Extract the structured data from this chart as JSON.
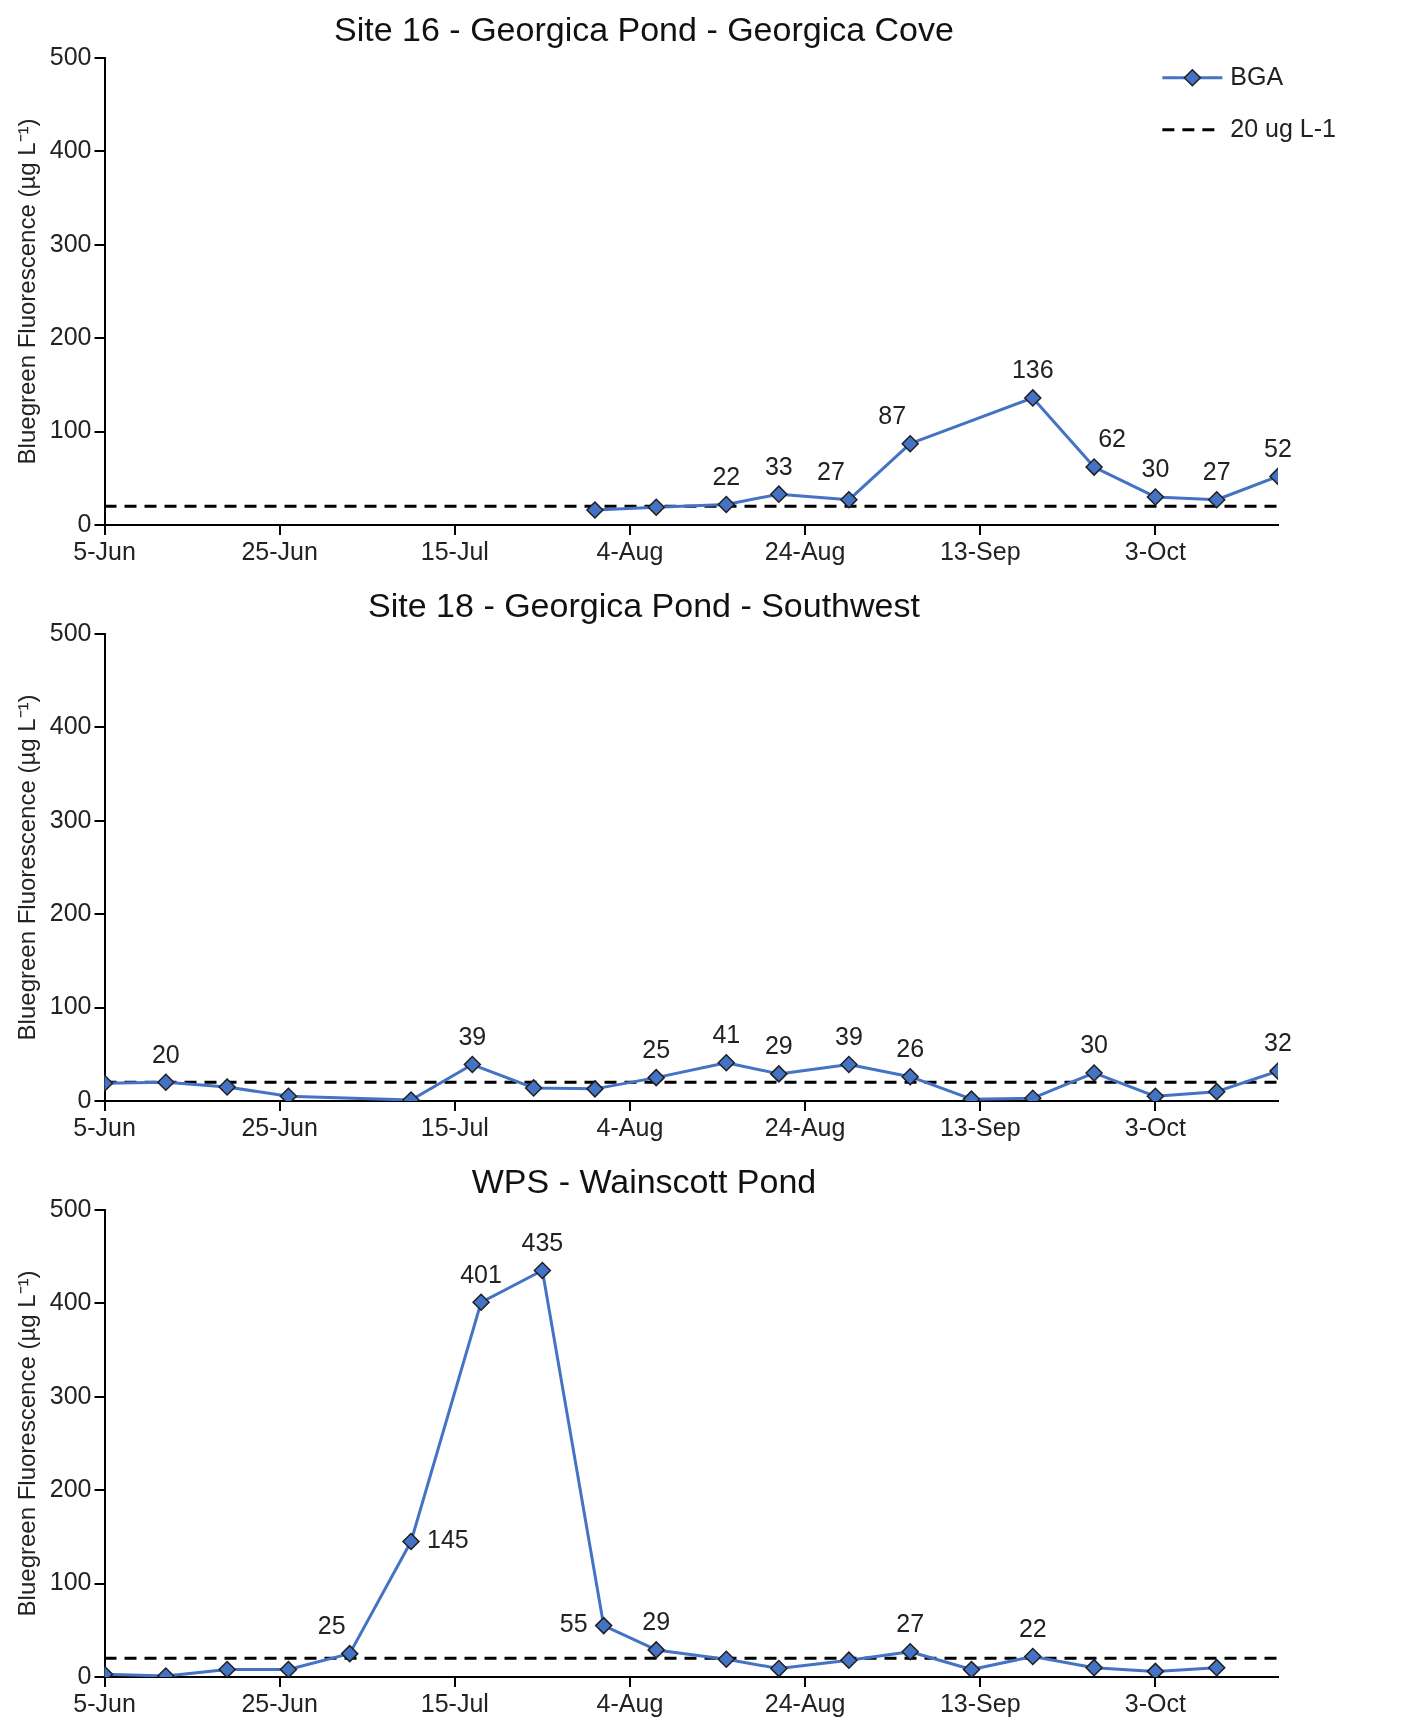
{
  "chart_data": [
    {
      "type": "line",
      "title": "Site 16 - Georgica Pond - Georgica Cove",
      "ylabel": "Bluegreen Fluorescence (µg L⁻¹)",
      "xlim": [
        "--06-05",
        "--10-17"
      ],
      "xticks": [
        {
          "value": "--06-05",
          "label": "5-Jun"
        },
        {
          "value": "--06-25",
          "label": "25-Jun"
        },
        {
          "value": "--07-15",
          "label": "15-Jul"
        },
        {
          "value": "--08-04",
          "label": "4-Aug"
        },
        {
          "value": "--08-24",
          "label": "24-Aug"
        },
        {
          "value": "--09-13",
          "label": "13-Sep"
        },
        {
          "value": "--10-03",
          "label": "3-Oct"
        }
      ],
      "ylim": [
        0,
        500
      ],
      "yticks": [
        0,
        100,
        200,
        300,
        400,
        500
      ],
      "marker": "diamond",
      "line_style": "solid",
      "legend": "top right",
      "grid": false,
      "series": [
        {
          "name": "BGA",
          "color": "#4472c4",
          "x": [
            "--07-31",
            "--08-07",
            "--08-15",
            "--08-21",
            "--08-29",
            "--09-05",
            "--09-19",
            "--09-26",
            "--10-03",
            "--10-10",
            "--10-17"
          ],
          "values": [
            16,
            19,
            22,
            33,
            27,
            87,
            136,
            62,
            30,
            27,
            52
          ],
          "value_labels": [
            null,
            null,
            "22",
            "33",
            "27",
            "87",
            "136",
            "62",
            "30",
            "27",
            "52"
          ]
        }
      ],
      "ref_lines": [
        {
          "axis": "y",
          "value": 20,
          "label": "20 ug L-1",
          "color": "#000000",
          "line_style": "dashed"
        }
      ]
    },
    {
      "type": "line",
      "title": "Site 18 - Georgica Pond - Southwest",
      "ylabel": "Bluegreen Fluorescence (µg L⁻¹)",
      "xlim": [
        "--06-05",
        "--10-17"
      ],
      "xticks": [
        {
          "value": "--06-05",
          "label": "5-Jun"
        },
        {
          "value": "--06-25",
          "label": "25-Jun"
        },
        {
          "value": "--07-15",
          "label": "15-Jul"
        },
        {
          "value": "--08-04",
          "label": "4-Aug"
        },
        {
          "value": "--08-24",
          "label": "24-Aug"
        },
        {
          "value": "--09-13",
          "label": "13-Sep"
        },
        {
          "value": "--10-03",
          "label": "3-Oct"
        }
      ],
      "ylim": [
        0,
        500
      ],
      "yticks": [
        0,
        100,
        200,
        300,
        400,
        500
      ],
      "marker": "diamond",
      "line_style": "solid",
      "grid": false,
      "series": [
        {
          "color": "#4472c4",
          "x": [
            "--06-05",
            "--06-12",
            "--06-19",
            "--06-26",
            "--07-10",
            "--07-17",
            "--07-24",
            "--07-31",
            "--08-07",
            "--08-15",
            "--08-21",
            "--08-29",
            "--09-05",
            "--09-12",
            "--09-19",
            "--09-26",
            "--10-03",
            "--10-10",
            "--10-17"
          ],
          "values": [
            19,
            20,
            15,
            5,
            1,
            39,
            14,
            13,
            25,
            41,
            29,
            39,
            26,
            2,
            3,
            30,
            5,
            10,
            32
          ],
          "value_labels": [
            null,
            "20",
            null,
            null,
            null,
            "39",
            null,
            null,
            "25",
            "41",
            "29",
            "39",
            "26",
            null,
            null,
            "30",
            null,
            null,
            "32"
          ]
        }
      ],
      "ref_lines": [
        {
          "axis": "y",
          "value": 20,
          "color": "#000000",
          "line_style": "dashed"
        }
      ]
    },
    {
      "type": "line",
      "title": "WPS - Wainscott Pond",
      "ylabel": "Bluegreen Fluorescence (µg L⁻¹)",
      "xlim": [
        "--06-05",
        "--10-17"
      ],
      "xticks": [
        {
          "value": "--06-05",
          "label": "5-Jun"
        },
        {
          "value": "--06-25",
          "label": "25-Jun"
        },
        {
          "value": "--07-15",
          "label": "15-Jul"
        },
        {
          "value": "--08-04",
          "label": "4-Aug"
        },
        {
          "value": "--08-24",
          "label": "24-Aug"
        },
        {
          "value": "--09-13",
          "label": "13-Sep"
        },
        {
          "value": "--10-03",
          "label": "3-Oct"
        }
      ],
      "ylim": [
        0,
        500
      ],
      "yticks": [
        0,
        100,
        200,
        300,
        400,
        500
      ],
      "marker": "diamond",
      "line_style": "solid",
      "grid": false,
      "series": [
        {
          "color": "#4472c4",
          "x": [
            "--06-05",
            "--06-12",
            "--06-19",
            "--06-26",
            "--07-03",
            "--07-10",
            "--07-18",
            "--07-25",
            "--08-01",
            "--08-07",
            "--08-15",
            "--08-21",
            "--08-29",
            "--09-05",
            "--09-12",
            "--09-19",
            "--09-26",
            "--10-03",
            "--10-10"
          ],
          "values": [
            3,
            1,
            8,
            8,
            25,
            145,
            401,
            435,
            55,
            29,
            19,
            9,
            18,
            27,
            8,
            22,
            10,
            6,
            10
          ],
          "value_labels": [
            null,
            null,
            null,
            null,
            "25",
            "145",
            "401",
            "435",
            "55",
            "29",
            null,
            null,
            null,
            "27",
            null,
            "22",
            null,
            null,
            null
          ]
        }
      ],
      "ref_lines": [
        {
          "axis": "y",
          "value": 20,
          "color": "#000000",
          "line_style": "dashed"
        }
      ]
    }
  ]
}
